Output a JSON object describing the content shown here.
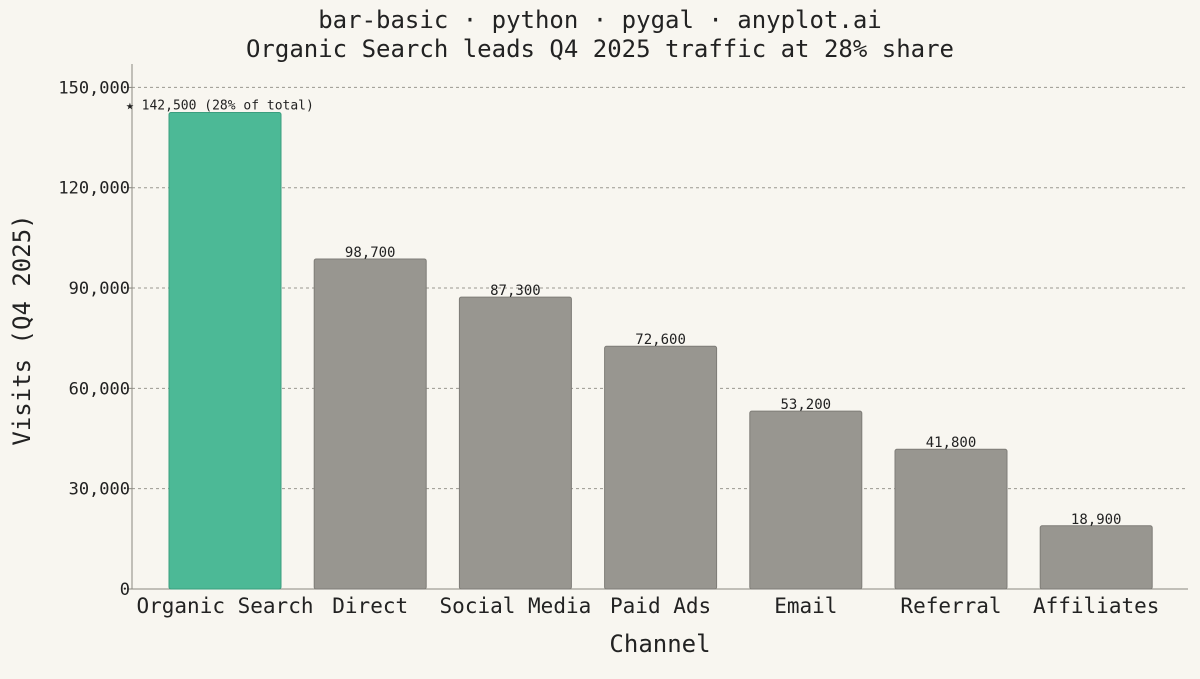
{
  "chart_data": {
    "type": "bar",
    "title": "bar-basic · python · pygal · anyplot.ai",
    "subtitle": "Organic Search leads Q4 2025 traffic at 28% share",
    "xlabel": "Channel",
    "ylabel": "Visits (Q4 2025)",
    "categories": [
      "Organic Search",
      "Direct",
      "Social Media",
      "Paid Ads",
      "Email",
      "Referral",
      "Affiliates"
    ],
    "values": [
      142500,
      98700,
      87300,
      72600,
      53200,
      41800,
      18900
    ],
    "data_labels": [
      "★ 142,500 (28% of total)",
      "98,700",
      "87,300",
      "72,600",
      "53,200",
      "41,800",
      "18,900"
    ],
    "ylim": [
      0,
      157000
    ],
    "yticks": [
      0,
      30000,
      60000,
      90000,
      120000,
      150000
    ],
    "ytick_labels": [
      "0",
      "30,000",
      "60,000",
      "90,000",
      "120,000",
      "150,000"
    ],
    "grid": true,
    "legend": "none",
    "highlight_index": 0,
    "colors": {
      "highlight": "#4cb996",
      "highlight_stroke": "#3a9e7e",
      "default": "#989690",
      "default_stroke": "#7e7c77",
      "grid": "#9a9890",
      "axis": "#8a8880",
      "text": "#222222",
      "background": "#f8f6f0"
    }
  }
}
